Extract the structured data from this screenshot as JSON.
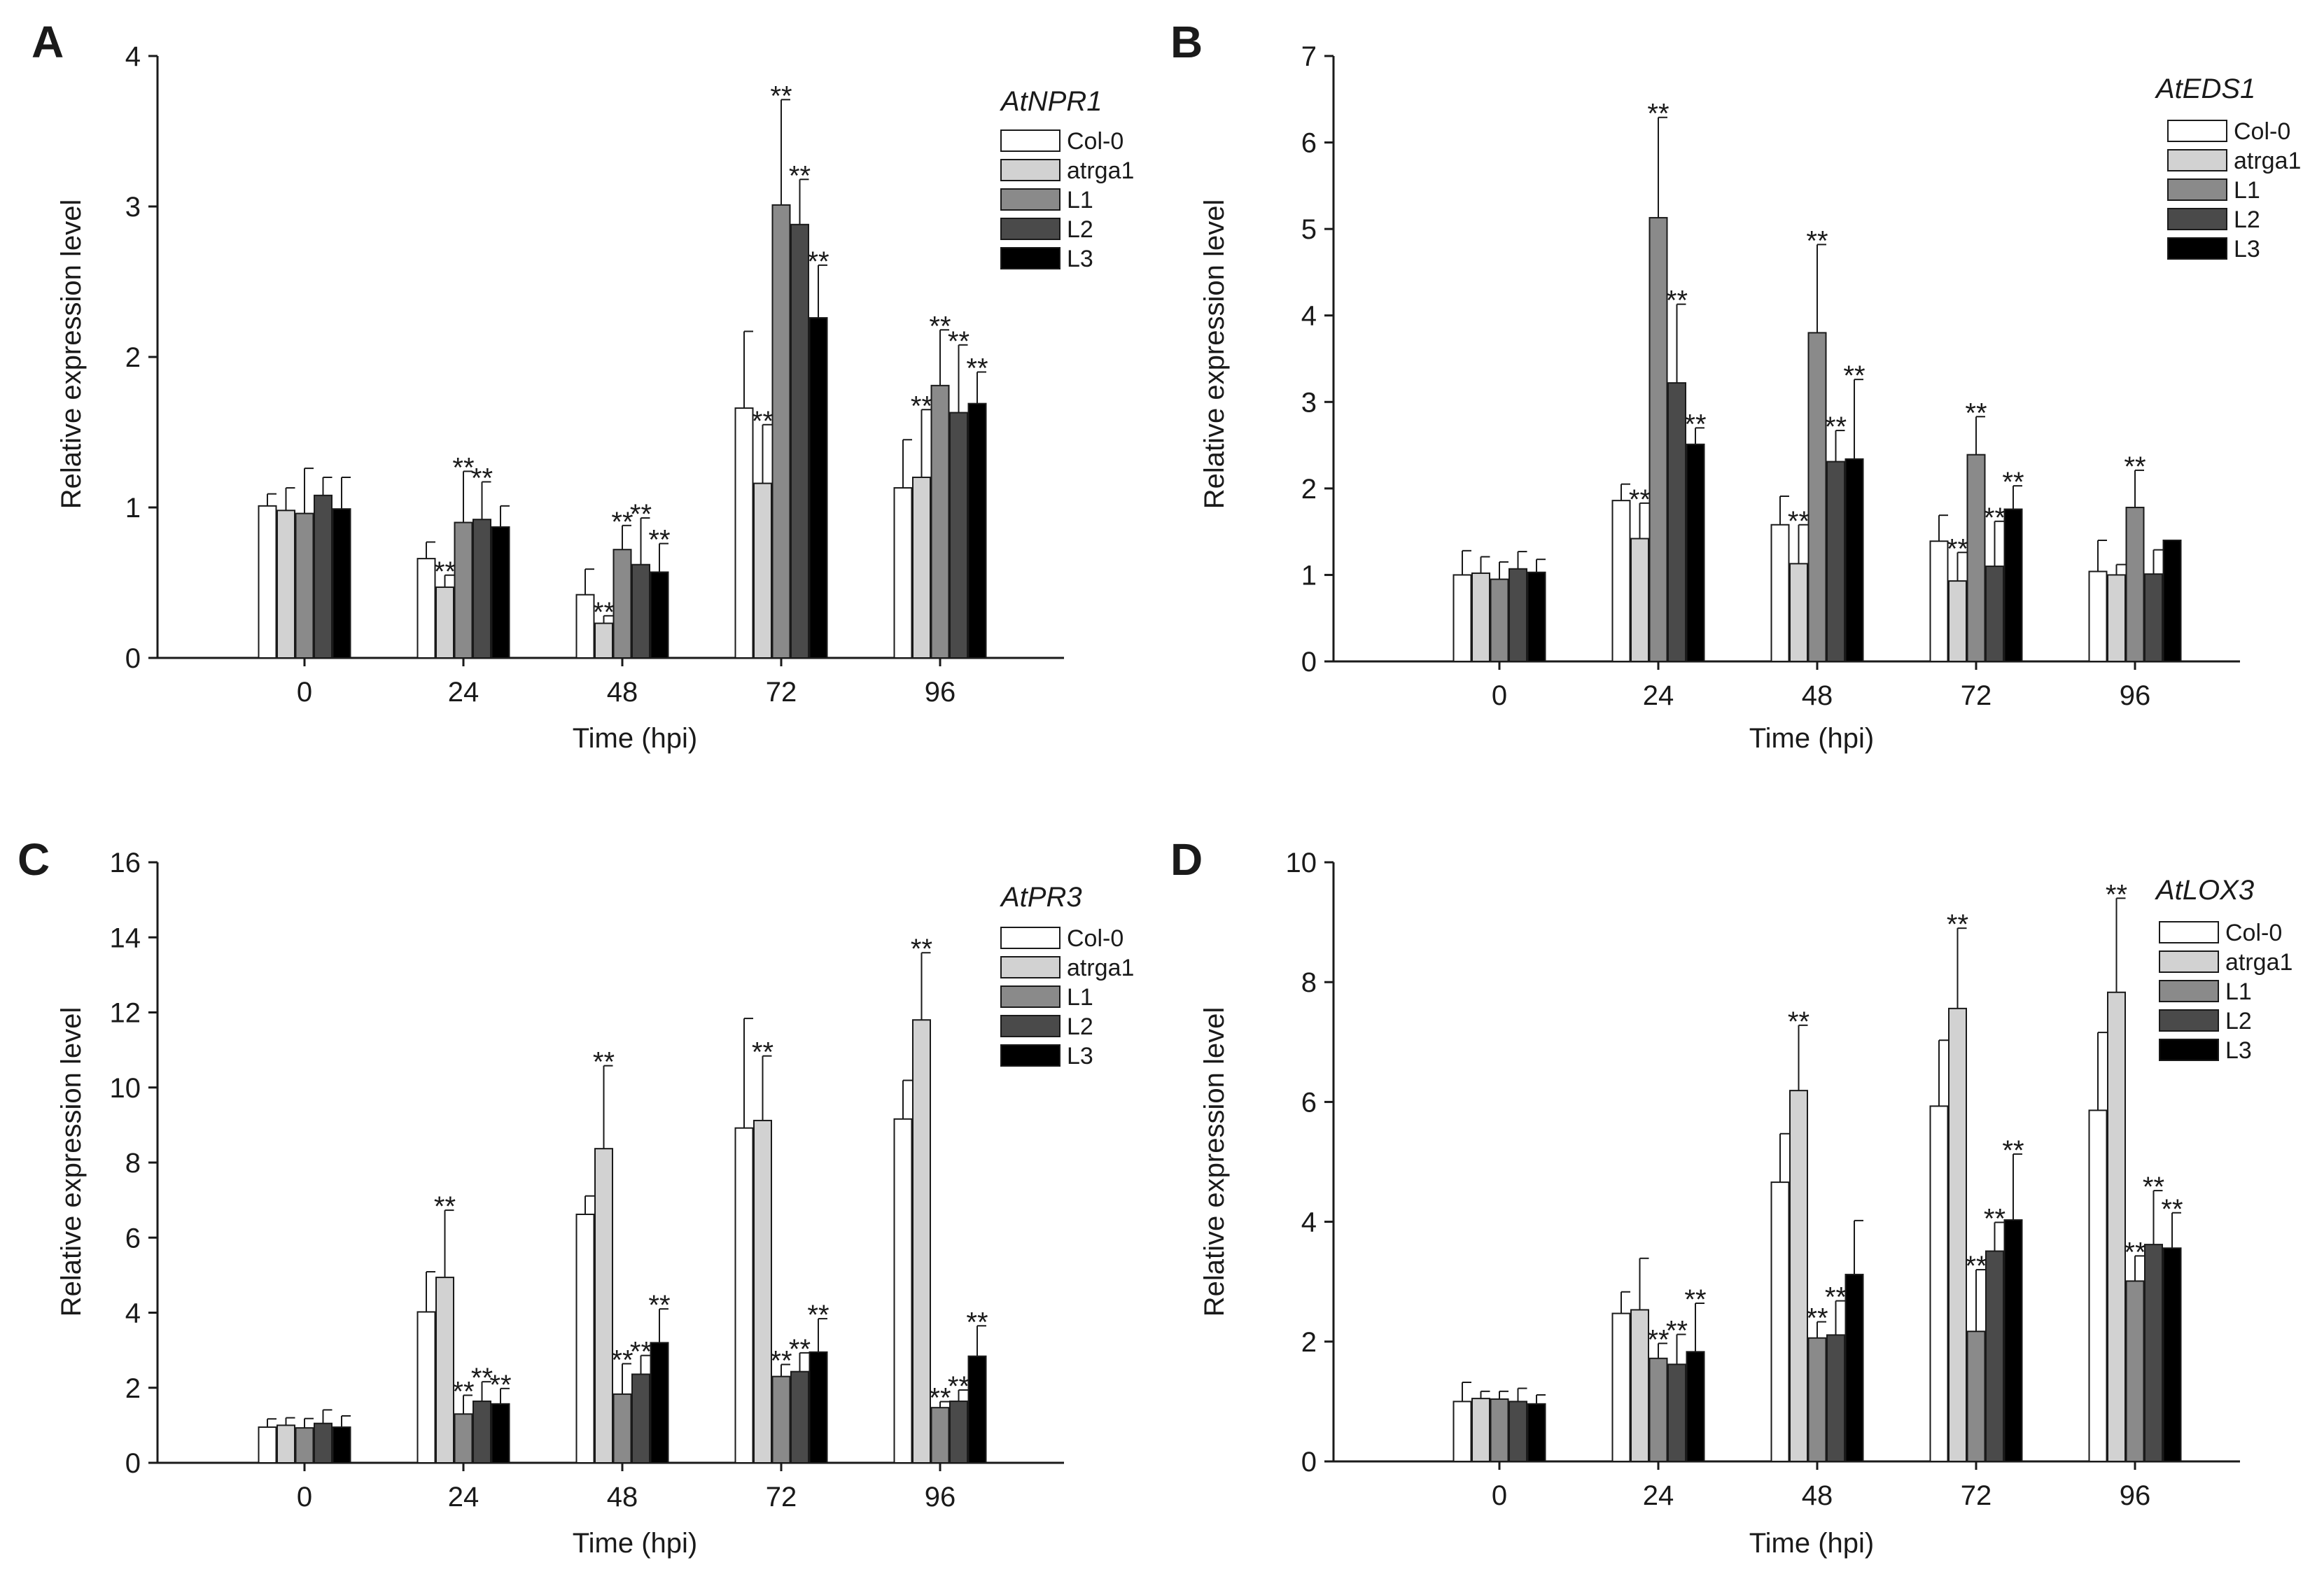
{
  "figure": {
    "legend_series": [
      "Col-0",
      "atrga1",
      "L1",
      "L2",
      "L3"
    ],
    "series_colors": [
      "#ffffff",
      "#d2d2d2",
      "#8a8a8a",
      "#4a4a4a",
      "#000000"
    ],
    "axis_color": "#1a1a1a"
  },
  "chart_data": [
    {
      "type": "bar",
      "panel": "A",
      "gene": "AtNPR1",
      "xlabel": "Time (hpi)",
      "ylabel": "Relative expression level",
      "categories": [
        "0",
        "24",
        "48",
        "72",
        "96"
      ],
      "ylim": [
        0,
        4
      ],
      "yticks": [
        "0",
        "1",
        "2",
        "3",
        "4"
      ],
      "legend_position": "top-right",
      "series": [
        {
          "name": "Col-0",
          "values": [
            1.01,
            0.66,
            0.42,
            1.66,
            1.13
          ],
          "errors": [
            0.08,
            0.11,
            0.17,
            0.51,
            0.32
          ]
        },
        {
          "name": "atrga1",
          "values": [
            0.98,
            0.47,
            0.23,
            1.16,
            1.2
          ],
          "errors": [
            0.15,
            0.08,
            0.05,
            0.39,
            0.45
          ]
        },
        {
          "name": "L1",
          "values": [
            0.96,
            0.9,
            0.72,
            3.01,
            1.81
          ],
          "errors": [
            0.3,
            0.34,
            0.16,
            0.7,
            0.37
          ]
        },
        {
          "name": "L2",
          "values": [
            1.08,
            0.92,
            0.62,
            2.88,
            1.63
          ],
          "errors": [
            0.12,
            0.25,
            0.31,
            0.3,
            0.45
          ]
        },
        {
          "name": "L3",
          "values": [
            0.99,
            0.87,
            0.57,
            2.26,
            1.69
          ],
          "errors": [
            0.21,
            0.14,
            0.19,
            0.35,
            0.21
          ]
        }
      ],
      "significance": [
        [
          "",
          "",
          "",
          "",
          ""
        ],
        [
          "",
          "**",
          "**",
          "**",
          "**"
        ],
        [
          "",
          "**",
          "**",
          "**",
          "**"
        ],
        [
          "",
          "**",
          "**",
          "**",
          "**"
        ],
        [
          "",
          "",
          "**",
          "**",
          "**"
        ]
      ]
    },
    {
      "type": "bar",
      "panel": "B",
      "gene": "AtEDS1",
      "xlabel": "Time (hpi)",
      "ylabel": "Relative expression level",
      "categories": [
        "0",
        "24",
        "48",
        "72",
        "96"
      ],
      "ylim": [
        0,
        7
      ],
      "yticks": [
        "0",
        "1",
        "2",
        "3",
        "4",
        "5",
        "6",
        "7"
      ],
      "legend_position": "top-right",
      "series": [
        {
          "name": "Col-0",
          "values": [
            1.0,
            1.86,
            1.58,
            1.39,
            1.04
          ],
          "errors": [
            0.28,
            0.19,
            0.33,
            0.3,
            0.36
          ]
        },
        {
          "name": "atrga1",
          "values": [
            1.02,
            1.42,
            1.13,
            0.93,
            1.0
          ],
          "errors": [
            0.19,
            0.41,
            0.45,
            0.33,
            0.12
          ]
        },
        {
          "name": "L1",
          "values": [
            0.95,
            5.13,
            3.8,
            2.39,
            1.78
          ],
          "errors": [
            0.2,
            1.16,
            1.02,
            0.44,
            0.43
          ]
        },
        {
          "name": "L2",
          "values": [
            1.07,
            3.22,
            2.31,
            1.1,
            1.01
          ],
          "errors": [
            0.2,
            0.91,
            0.36,
            0.52,
            0.28
          ]
        },
        {
          "name": "L3",
          "values": [
            1.03,
            2.51,
            2.34,
            1.76,
            1.4
          ],
          "errors": [
            0.15,
            0.19,
            0.92,
            0.27,
            0.0
          ]
        }
      ],
      "significance": [
        [
          "",
          "",
          "",
          "",
          ""
        ],
        [
          "",
          "**",
          "**",
          "**",
          ""
        ],
        [
          "",
          "**",
          "**",
          "**",
          "**"
        ],
        [
          "",
          "**",
          "**",
          "**",
          ""
        ],
        [
          "",
          "**",
          "**",
          "**",
          ""
        ]
      ]
    },
    {
      "type": "bar",
      "panel": "C",
      "gene": "AtPR3",
      "xlabel": "Time (hpi)",
      "ylabel": "Relative expression level",
      "categories": [
        "0",
        "24",
        "48",
        "72",
        "96"
      ],
      "ylim": [
        0,
        16
      ],
      "yticks": [
        "0",
        "2",
        "4",
        "6",
        "8",
        "10",
        "12",
        "14",
        "16"
      ],
      "legend_position": "top-right",
      "series": [
        {
          "name": "Col-0",
          "values": [
            0.95,
            4.02,
            6.62,
            8.92,
            9.16
          ],
          "errors": [
            0.22,
            1.07,
            0.49,
            2.92,
            1.03
          ]
        },
        {
          "name": "atrga1",
          "values": [
            1.0,
            4.94,
            8.37,
            9.12,
            11.8
          ],
          "errors": [
            0.2,
            1.79,
            2.21,
            1.72,
            1.79
          ]
        },
        {
          "name": "L1",
          "values": [
            0.93,
            1.3,
            1.83,
            2.3,
            1.47
          ],
          "errors": [
            0.25,
            0.5,
            0.81,
            0.32,
            0.16
          ]
        },
        {
          "name": "L2",
          "values": [
            1.05,
            1.64,
            2.36,
            2.43,
            1.64
          ],
          "errors": [
            0.36,
            0.52,
            0.5,
            0.5,
            0.3
          ]
        },
        {
          "name": "L3",
          "values": [
            0.95,
            1.57,
            3.2,
            2.95,
            2.84
          ],
          "errors": [
            0.3,
            0.41,
            0.9,
            0.89,
            0.81
          ]
        }
      ],
      "significance": [
        [
          "",
          "",
          "",
          "",
          ""
        ],
        [
          "",
          "**",
          "**",
          "**",
          "**"
        ],
        [
          "",
          "**",
          "**",
          "**",
          "**"
        ],
        [
          "",
          "**",
          "**",
          "**",
          "**"
        ],
        [
          "",
          "**",
          "**",
          "**",
          "**"
        ]
      ]
    },
    {
      "type": "bar",
      "panel": "D",
      "gene": "AtLOX3",
      "xlabel": "Time (hpi)",
      "ylabel": "Relative expression level",
      "categories": [
        "0",
        "24",
        "48",
        "72",
        "96"
      ],
      "ylim": [
        0,
        10
      ],
      "yticks": [
        "0",
        "2",
        "4",
        "6",
        "8",
        "10"
      ],
      "legend_position": "top-right",
      "series": [
        {
          "name": "Col-0",
          "values": [
            1.0,
            2.47,
            4.66,
            5.93,
            5.86
          ],
          "errors": [
            0.32,
            0.36,
            0.81,
            1.1,
            1.3
          ]
        },
        {
          "name": "atrga1",
          "values": [
            1.05,
            2.53,
            6.19,
            7.56,
            7.83
          ],
          "errors": [
            0.12,
            0.86,
            1.09,
            1.34,
            1.57
          ]
        },
        {
          "name": "L1",
          "values": [
            1.04,
            1.72,
            2.06,
            2.17,
            3.01
          ],
          "errors": [
            0.13,
            0.25,
            0.27,
            1.03,
            0.42
          ]
        },
        {
          "name": "L2",
          "values": [
            1.0,
            1.62,
            2.11,
            3.51,
            3.62
          ],
          "errors": [
            0.22,
            0.5,
            0.57,
            0.48,
            0.9
          ]
        },
        {
          "name": "L3",
          "values": [
            0.96,
            1.83,
            3.12,
            4.03,
            3.56
          ],
          "errors": [
            0.15,
            0.81,
            0.9,
            1.1,
            0.59
          ]
        }
      ],
      "significance": [
        [
          "",
          "",
          "",
          "",
          ""
        ],
        [
          "",
          "",
          "**",
          "**",
          "**"
        ],
        [
          "",
          "**",
          "**",
          "**",
          "**"
        ],
        [
          "",
          "**",
          "**",
          "**",
          "**"
        ],
        [
          "",
          "**",
          "",
          "**",
          "**"
        ]
      ]
    }
  ]
}
